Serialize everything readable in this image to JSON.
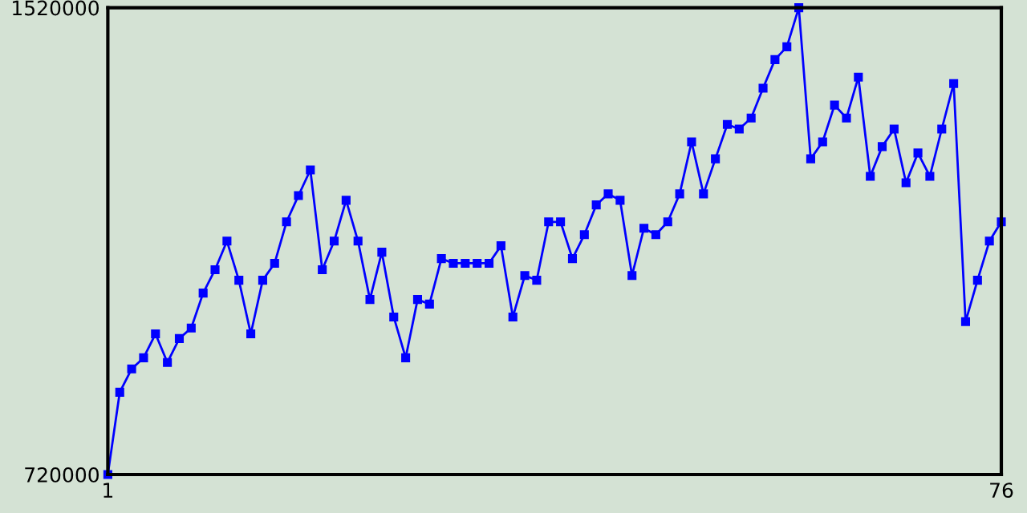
{
  "chart_data": {
    "type": "line",
    "x": [
      1,
      2,
      3,
      4,
      5,
      6,
      7,
      8,
      9,
      10,
      11,
      12,
      13,
      14,
      15,
      16,
      17,
      18,
      19,
      20,
      21,
      22,
      23,
      24,
      25,
      26,
      27,
      28,
      29,
      30,
      31,
      32,
      33,
      34,
      35,
      36,
      37,
      38,
      39,
      40,
      41,
      42,
      43,
      44,
      45,
      46,
      47,
      48,
      49,
      50,
      51,
      52,
      53,
      54,
      55,
      56,
      57,
      58,
      59,
      60,
      61,
      62,
      63,
      64,
      65,
      66,
      67,
      68,
      69,
      70,
      71,
      72,
      73,
      74,
      75,
      76
    ],
    "series": [
      {
        "color": "#0000ff",
        "values": [
          720000,
          861000,
          901000,
          920000,
          961000,
          912000,
          953000,
          971000,
          1031000,
          1071000,
          1120000,
          1053000,
          961000,
          1053000,
          1082000,
          1153000,
          1198000,
          1242000,
          1071000,
          1120000,
          1190000,
          1120000,
          1020000,
          1101000,
          990000,
          920000,
          1020000,
          1012000,
          1090000,
          1082000,
          1082000,
          1082000,
          1082000,
          1112000,
          990000,
          1061000,
          1053000,
          1153000,
          1153000,
          1090000,
          1131000,
          1182000,
          1201000,
          1190000,
          1061000,
          1142000,
          1131000,
          1153000,
          1201000,
          1290000,
          1201000,
          1261000,
          1320000,
          1312000,
          1331000,
          1382000,
          1431000,
          1453000,
          1520000,
          1261000,
          1290000,
          1353000,
          1331000,
          1401000,
          1231000,
          1282000,
          1312000,
          1220000,
          1271000,
          1231000,
          1312000,
          1390000,
          982000,
          1053000,
          1120000,
          1153000
        ]
      }
    ],
    "xlim": [
      1,
      76
    ],
    "xticks": [
      1,
      76
    ],
    "ylim": [
      720000,
      1520000
    ],
    "yticks": [
      720000,
      1520000
    ],
    "marker": "square",
    "line_style": "solid"
  }
}
